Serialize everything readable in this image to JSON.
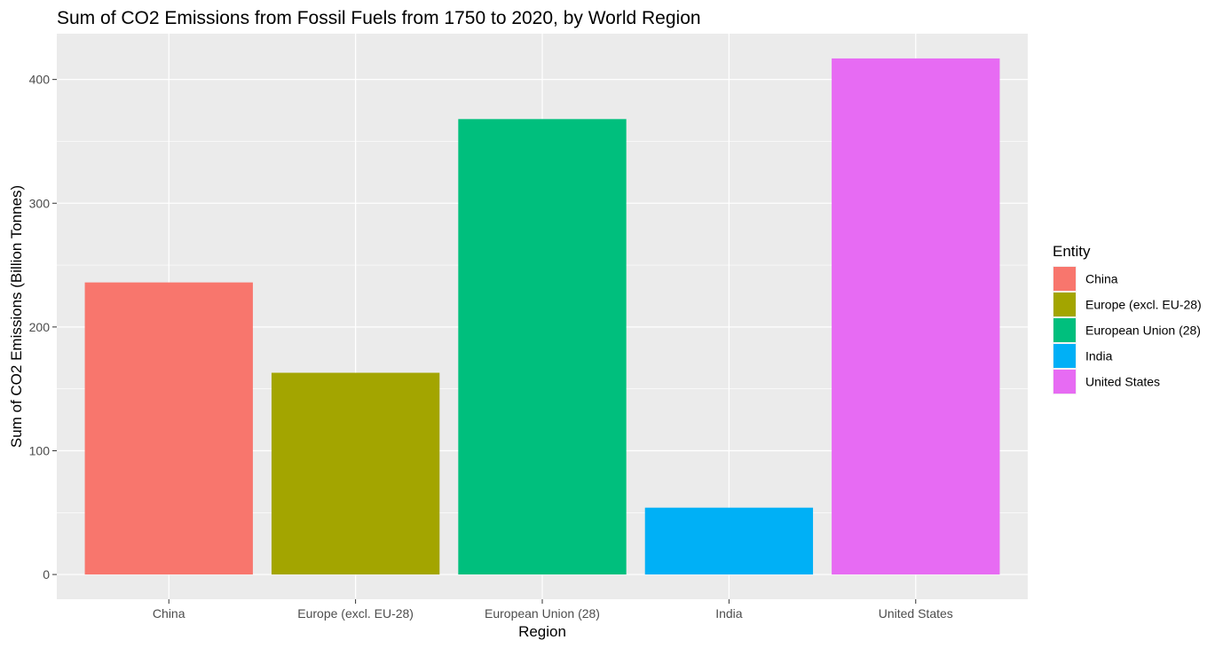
{
  "chart_data": {
    "type": "bar",
    "title": "Sum of CO2 Emissions from Fossil Fuels from 1750 to 2020, by World Region",
    "xlabel": "Region",
    "ylabel": "Sum of CO2 Emissions (Billion Tonnes)",
    "categories": [
      "China",
      "Europe (excl. EU-28)",
      "European Union (28)",
      "India",
      "United States"
    ],
    "values": [
      236,
      163,
      368,
      54,
      417
    ],
    "colors": [
      "#F8766D",
      "#A3A500",
      "#00BF7D",
      "#00B0F6",
      "#E76BF3"
    ],
    "ylim": [
      -20,
      437
    ],
    "yticks": [
      0,
      100,
      200,
      300,
      400
    ],
    "grid": true,
    "legend": {
      "title": "Entity",
      "position": "right",
      "items": [
        "China",
        "Europe (excl. EU-28)",
        "European Union (28)",
        "India",
        "United States"
      ]
    }
  }
}
